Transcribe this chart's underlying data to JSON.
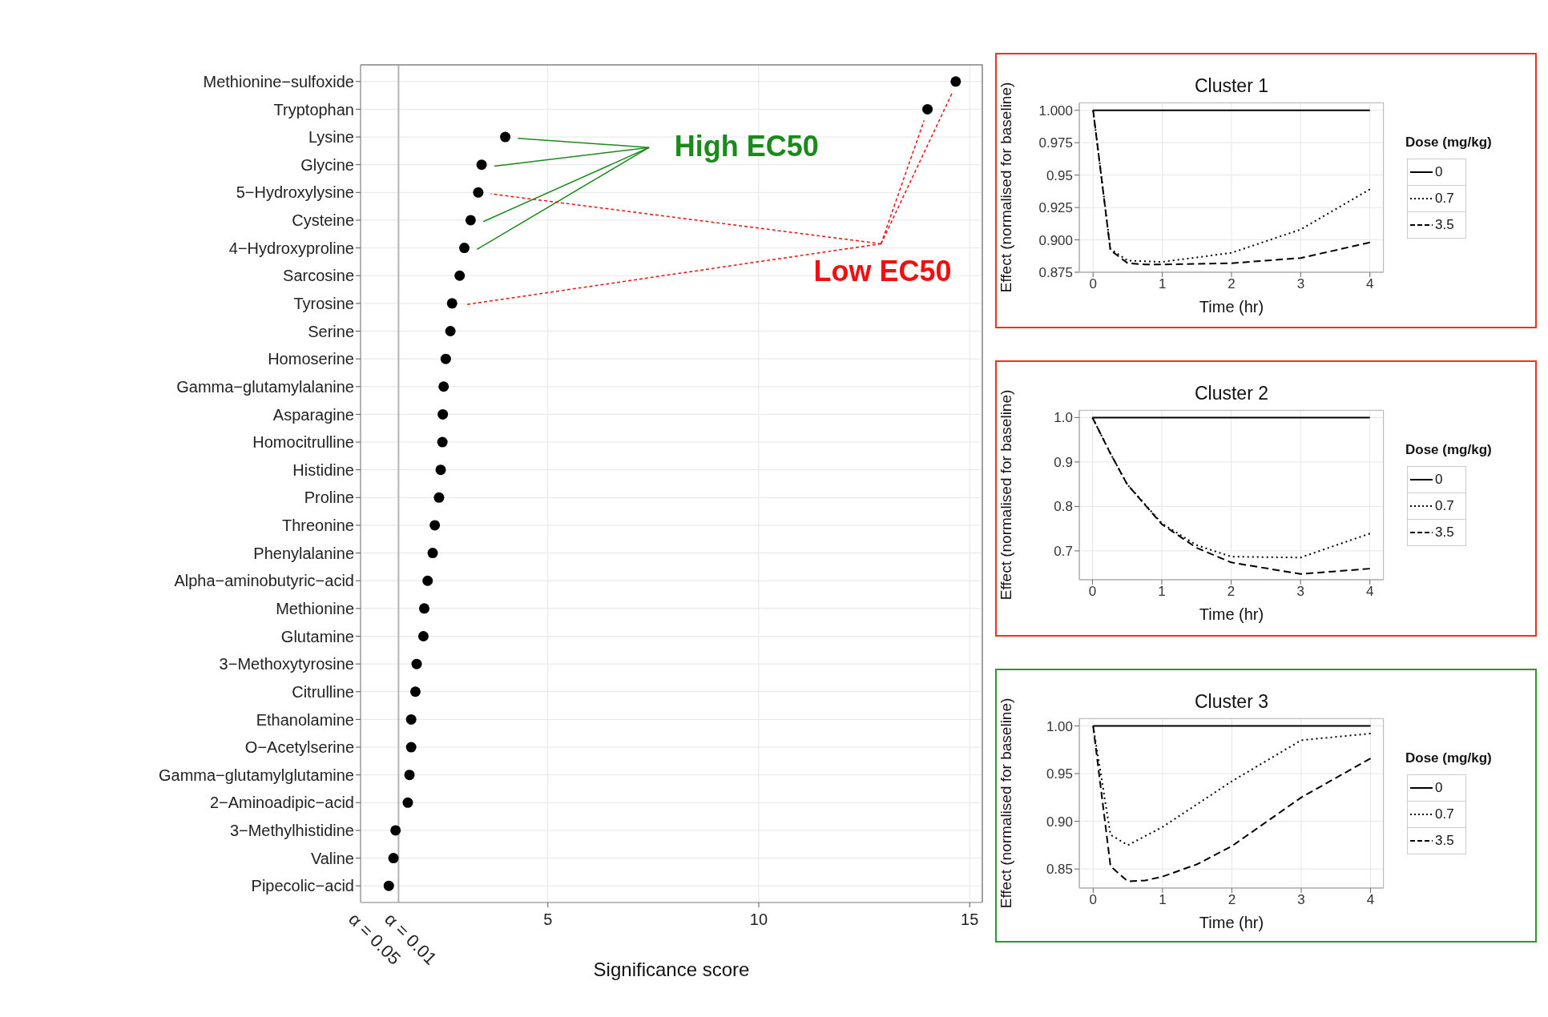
{
  "chart_data": [
    {
      "type": "scatter",
      "orientation": "horizontal",
      "categories": [
        "Methionine−sulfoxide",
        "Tryptophan",
        "Lysine",
        "Glycine",
        "5−Hydroxylysine",
        "Cysteine",
        "4−Hydroxyproline",
        "Sarcosine",
        "Tyrosine",
        "Serine",
        "Homoserine",
        "Gamma−glutamylalanine",
        "Asparagine",
        "Homocitrulline",
        "Histidine",
        "Proline",
        "Threonine",
        "Phenylalanine",
        "Alpha−aminobutyric−acid",
        "Methionine",
        "Glutamine",
        "3−Methoxytyrosine",
        "Citrulline",
        "Ethanolamine",
        "O−Acetylserine",
        "Gamma−glutamylglutamine",
        "2−Aminoadipic−acid",
        "3−Methylhistidine",
        "Valine",
        "Pipecolic−acid"
      ],
      "values": [
        14.67,
        14.0,
        3.99,
        3.43,
        3.35,
        3.17,
        3.02,
        2.91,
        2.73,
        2.69,
        2.58,
        2.53,
        2.51,
        2.5,
        2.46,
        2.42,
        2.32,
        2.27,
        2.15,
        2.07,
        2.05,
        1.89,
        1.86,
        1.76,
        1.76,
        1.72,
        1.68,
        1.39,
        1.34,
        1.23
      ],
      "color": "#000000",
      "marker": "circle",
      "xlim": [
        0.56,
        15.3
      ],
      "xticks": [
        5,
        10,
        15
      ],
      "xlabel": "Significance score",
      "grid": true,
      "ref_lines": [
        {
          "axis": "x",
          "value": 1.46,
          "color": "#b3b3b3"
        }
      ],
      "annotations": [
        "High EC50",
        "Low EC50",
        "α = 0.05",
        "α = 0.01"
      ]
    },
    {
      "type": "line",
      "title": "Cluster 1",
      "xlabel": "Time (hr)",
      "ylabel": "Effect (normalised for baseline)",
      "legend_title": "Dose (mg/kg)",
      "legend": "right",
      "grid": true,
      "xlim": [
        -0.2,
        4.2
      ],
      "xticks": [
        0,
        1,
        2,
        3,
        4
      ],
      "ylim": [
        0.875,
        1.006
      ],
      "yticks": [
        {
          "value": 0.875,
          "label": "0.875"
        },
        {
          "value": 0.9,
          "label": "0.900"
        },
        0.925,
        0.95,
        0.975,
        {
          "value": 1,
          "label": "1.000"
        }
      ],
      "series": [
        {
          "name": "0",
          "color": "#000000",
          "line_style": "solid",
          "x": [
            0,
            4
          ],
          "values": [
            1,
            1
          ]
        },
        {
          "name": "0.7",
          "color": "#000000",
          "line_style": "dotted",
          "x": [
            0,
            0.25,
            0.5,
            1,
            2,
            3,
            4
          ],
          "values": [
            1,
            0.893,
            0.884,
            0.883,
            0.89,
            0.908,
            0.939
          ]
        },
        {
          "name": "3.5",
          "color": "#000000",
          "line_style": "dashed",
          "x": [
            0,
            0.25,
            0.5,
            0.75,
            1,
            2,
            3,
            4
          ],
          "values": [
            1,
            0.892,
            0.882,
            0.881,
            0.881,
            0.882,
            0.886,
            0.898
          ]
        }
      ]
    },
    {
      "type": "line",
      "title": "Cluster 2",
      "xlabel": "Time (hr)",
      "ylabel": "Effect (normalised for baseline)",
      "legend_title": "Dose (mg/kg)",
      "legend": "right",
      "grid": true,
      "xlim": [
        -0.19,
        4.2
      ],
      "xticks": [
        0,
        1,
        2,
        3,
        4
      ],
      "ylim": [
        0.635,
        1.017
      ],
      "yticks": [
        0.7,
        0.8,
        0.9,
        {
          "value": 1,
          "label": "1.0"
        }
      ],
      "series": [
        {
          "name": "0",
          "color": "#000000",
          "line_style": "solid",
          "x": [
            0,
            4
          ],
          "values": [
            1,
            1
          ]
        },
        {
          "name": "0.7",
          "color": "#000000",
          "line_style": "dotted",
          "x": [
            0,
            0.25,
            0.5,
            1,
            1.5,
            2,
            3,
            4
          ],
          "values": [
            1,
            0.922,
            0.85,
            0.762,
            0.713,
            0.687,
            0.685,
            0.739
          ]
        },
        {
          "name": "3.5",
          "color": "#000000",
          "line_style": "dashed",
          "x": [
            0,
            0.25,
            0.5,
            1,
            1.5,
            2,
            3,
            4
          ],
          "values": [
            1,
            0.922,
            0.85,
            0.76,
            0.707,
            0.674,
            0.648,
            0.66
          ]
        }
      ]
    },
    {
      "type": "line",
      "title": "Cluster 3",
      "xlabel": "Time (hr)",
      "ylabel": "Effect (normalised for baseline)",
      "legend_title": "Dose (mg/kg)",
      "legend": "right",
      "grid": true,
      "xlim": [
        -0.2,
        4.19
      ],
      "xticks": [
        0,
        1,
        2,
        3,
        4
      ],
      "ylim": [
        0.83,
        1.008
      ],
      "yticks": [
        0.85,
        {
          "value": 0.9,
          "label": "0.90"
        },
        0.95,
        {
          "value": 1,
          "label": "1.00"
        }
      ],
      "series": [
        {
          "name": "0",
          "color": "#000000",
          "line_style": "solid",
          "x": [
            0,
            4
          ],
          "values": [
            1,
            1
          ]
        },
        {
          "name": "0.7",
          "color": "#000000",
          "line_style": "dotted",
          "x": [
            0,
            0.25,
            0.5,
            1,
            2,
            3,
            4
          ],
          "values": [
            1,
            0.886,
            0.875,
            0.894,
            0.942,
            0.985,
            0.992
          ]
        },
        {
          "name": "3.5",
          "color": "#000000",
          "line_style": "dashed",
          "x": [
            0,
            0.25,
            0.5,
            0.75,
            1,
            1.5,
            2,
            3,
            4
          ],
          "values": [
            1,
            0.853,
            0.837,
            0.838,
            0.842,
            0.855,
            0.874,
            0.925,
            0.966
          ]
        }
      ]
    }
  ]
}
